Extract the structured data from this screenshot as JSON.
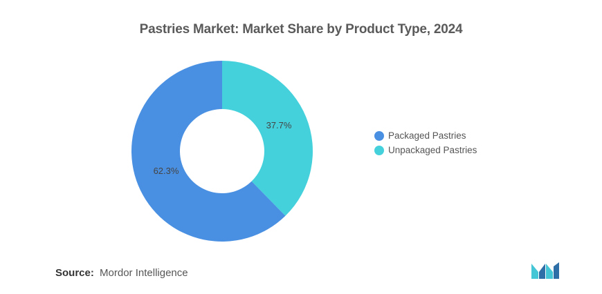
{
  "title": "Pastries Market: Market Share by Product Type, 2024",
  "chart_data": {
    "type": "pie",
    "donut": true,
    "categories": [
      "Unpackaged Pastries",
      "Packaged Pastries"
    ],
    "values": [
      37.7,
      62.3
    ],
    "value_labels": [
      "37.7%",
      "62.3%"
    ],
    "colors": [
      "#45d1dc",
      "#4a90e2"
    ],
    "legend_placement": "right",
    "legend": [
      {
        "label": "Packaged Pastries",
        "color": "#4a90e2"
      },
      {
        "label": "Unpackaged Pastries",
        "color": "#45d1dc"
      }
    ]
  },
  "source": {
    "label": "Source:",
    "text": "Mordor Intelligence"
  },
  "logo": {
    "icon": "mordor-intelligence-logo",
    "colors": [
      "#2f6fa7",
      "#45c6d6"
    ]
  }
}
